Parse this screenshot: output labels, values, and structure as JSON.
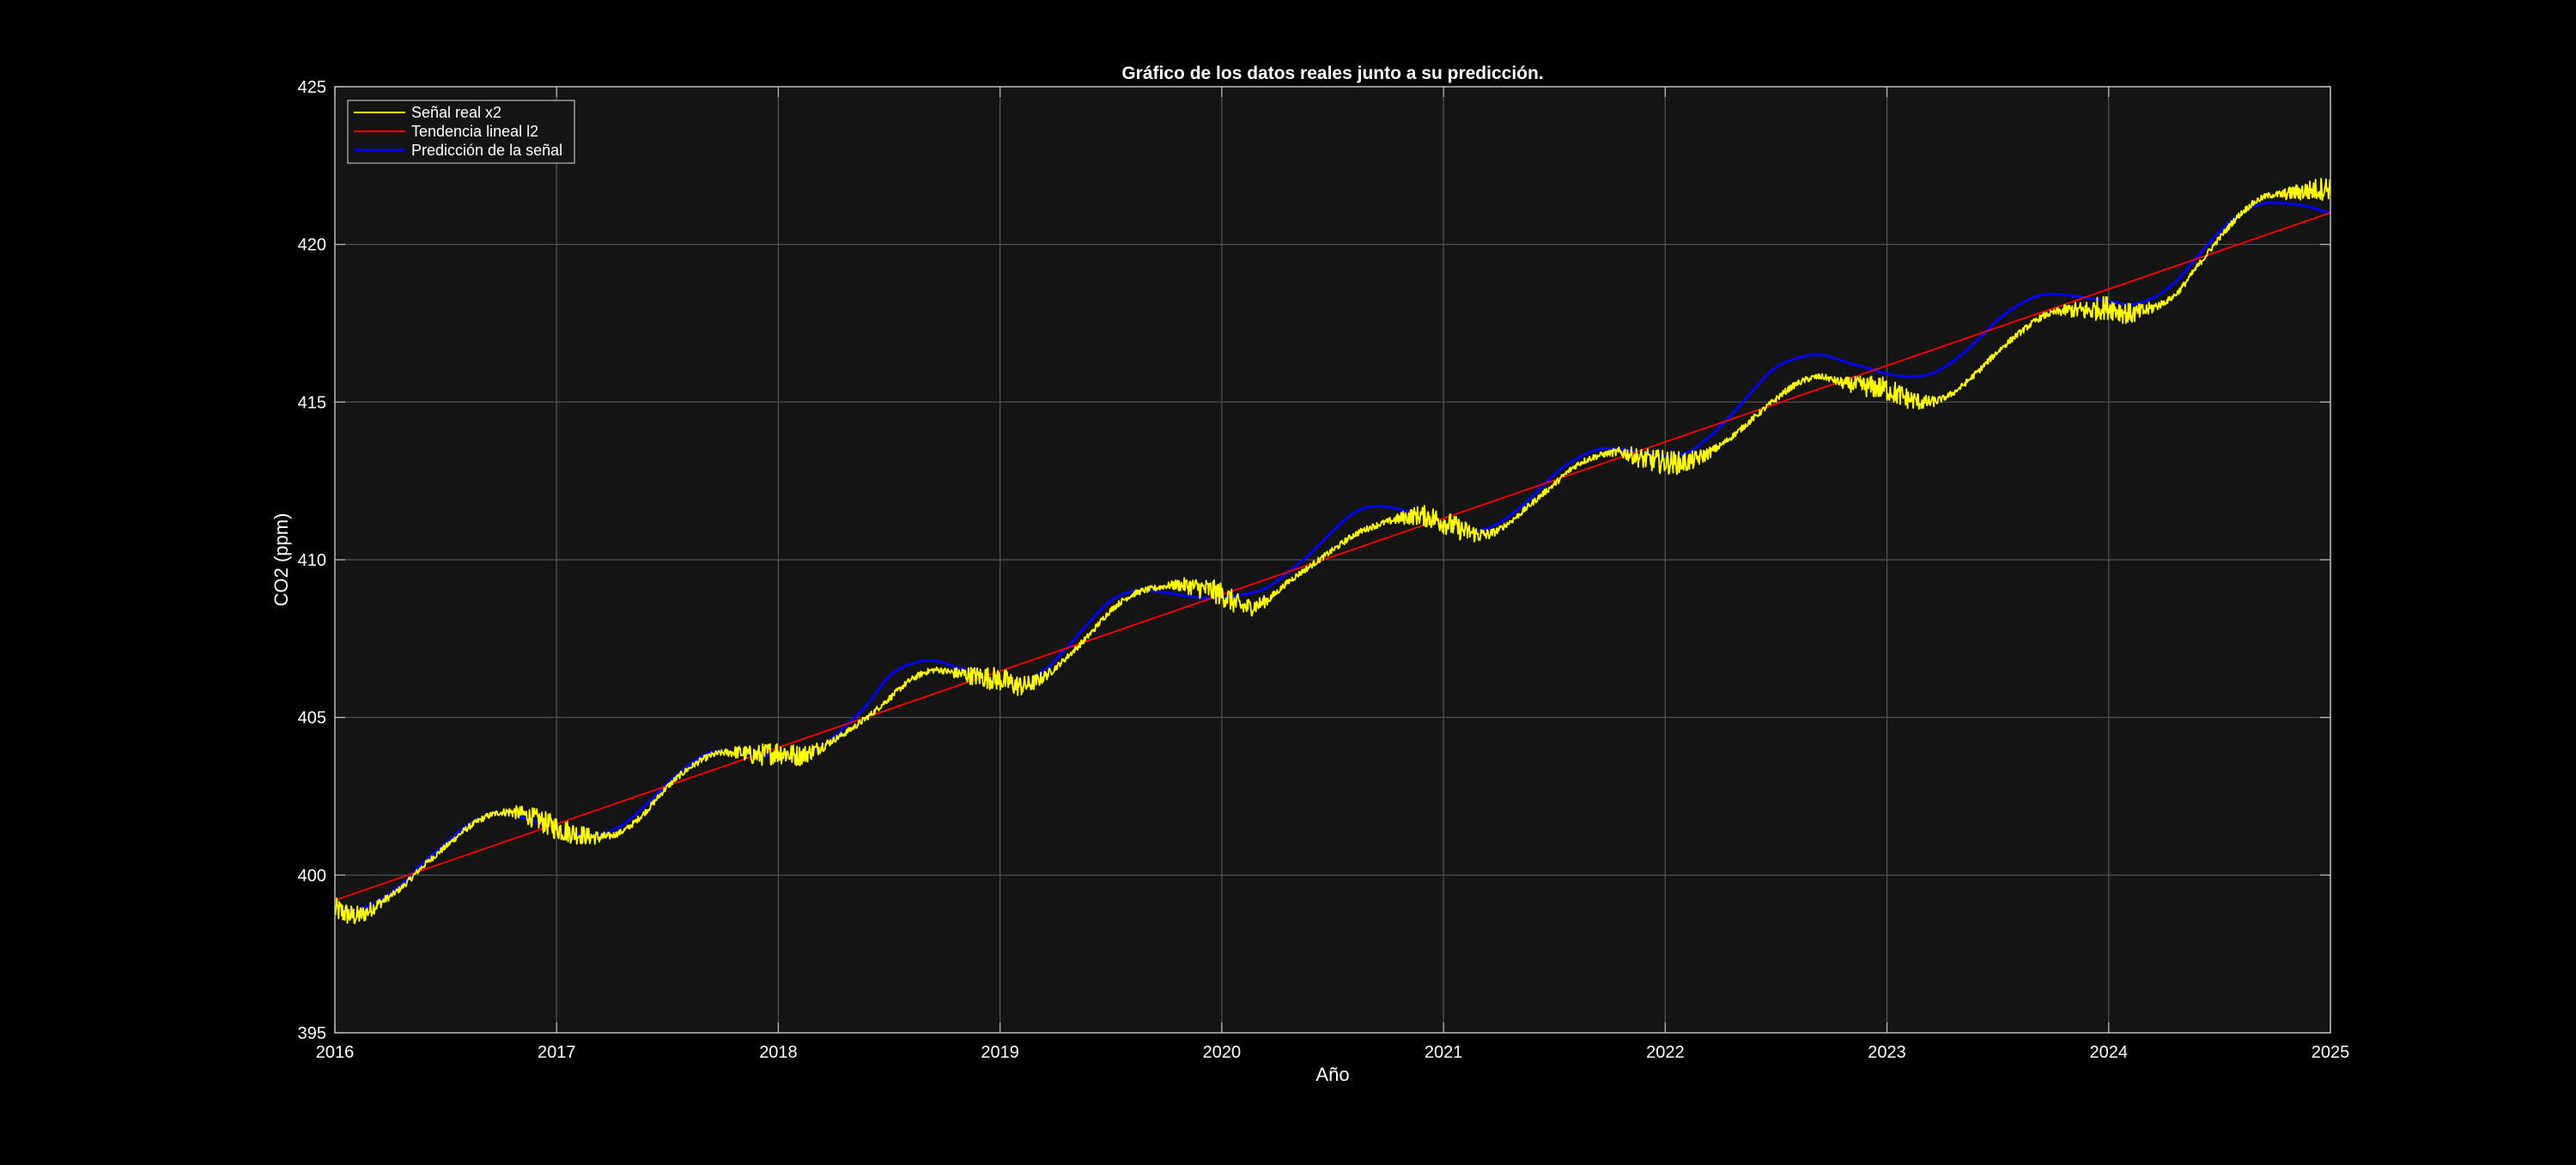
{
  "chart_data": {
    "type": "line",
    "title": "Gráfico de los datos reales junto a su predicción.",
    "xlabel": "Año",
    "ylabel": "CO2 (ppm)",
    "xlim": [
      2016,
      2025
    ],
    "ylim": [
      395,
      425
    ],
    "xticks": [
      "2016",
      "2017",
      "2018",
      "2019",
      "2020",
      "2021",
      "2022",
      "2023",
      "2024",
      "2025"
    ],
    "yticks": [
      "395",
      "400",
      "405",
      "410",
      "415",
      "420",
      "425"
    ],
    "grid": true,
    "legend_position": "top-left",
    "colors": {
      "figure_background": "#000000",
      "axes_background": "#141414",
      "grid": "#555555",
      "text": "#ffffff"
    },
    "series": [
      {
        "name": "Señal real x2",
        "color": "#ffff00",
        "noise": true,
        "x": [
          2016.0,
          2016.1,
          2016.2,
          2016.3,
          2016.4,
          2016.5,
          2016.6,
          2016.7,
          2016.8,
          2016.9,
          2017.0,
          2017.1,
          2017.2,
          2017.3,
          2017.4,
          2017.5,
          2017.6,
          2017.7,
          2017.8,
          2017.9,
          2018.0,
          2018.1,
          2018.2,
          2018.3,
          2018.4,
          2018.5,
          2018.6,
          2018.7,
          2018.8,
          2018.9,
          2019.0,
          2019.1,
          2019.2,
          2019.3,
          2019.4,
          2019.5,
          2019.6,
          2019.7,
          2019.8,
          2019.9,
          2020.0,
          2020.1,
          2020.2,
          2020.3,
          2020.4,
          2020.5,
          2020.6,
          2020.7,
          2020.8,
          2020.9,
          2021.0,
          2021.1,
          2021.2,
          2021.3,
          2021.4,
          2021.5,
          2021.6,
          2021.7,
          2021.8,
          2021.9,
          2022.0,
          2022.1,
          2022.2,
          2022.3,
          2022.4,
          2022.5,
          2022.6,
          2022.7,
          2022.8,
          2022.9,
          2023.0,
          2023.1,
          2023.2,
          2023.3,
          2023.4,
          2023.5,
          2023.6,
          2023.7,
          2023.8,
          2023.9,
          2024.0,
          2024.1,
          2024.2,
          2024.3,
          2024.4,
          2024.5,
          2024.6,
          2024.7,
          2024.8,
          2024.9,
          2025.0
        ],
        "y": [
          398.9,
          398.7,
          399.1,
          399.6,
          400.3,
          400.9,
          401.5,
          401.9,
          402.0,
          401.8,
          401.5,
          401.3,
          401.2,
          401.4,
          402.0,
          402.8,
          403.4,
          403.8,
          403.9,
          403.8,
          403.9,
          403.8,
          404.1,
          404.5,
          405.0,
          405.6,
          406.2,
          406.5,
          406.4,
          406.3,
          406.2,
          406.0,
          406.3,
          406.9,
          407.6,
          408.4,
          408.9,
          409.1,
          409.2,
          409.1,
          408.9,
          408.5,
          408.7,
          409.3,
          409.8,
          410.3,
          410.8,
          411.1,
          411.3,
          411.4,
          411.2,
          410.9,
          410.8,
          411.2,
          411.8,
          412.4,
          413.0,
          413.3,
          413.4,
          413.2,
          413.1,
          413.1,
          413.4,
          413.9,
          414.5,
          415.1,
          415.6,
          415.8,
          415.6,
          415.5,
          415.4,
          415.1,
          415.0,
          415.3,
          415.9,
          416.6,
          417.2,
          417.7,
          417.9,
          417.9,
          418.0,
          417.8,
          418.0,
          418.4,
          419.3,
          420.2,
          421.0,
          421.5,
          421.6,
          421.7,
          421.8
        ]
      },
      {
        "name": "Tendencia lineal l2",
        "color": "#ff0000",
        "x": [
          2016,
          2025
        ],
        "y": [
          399.2,
          421.0
        ]
      },
      {
        "name": "Predicción de la señal",
        "color": "#0000ff",
        "x": [
          2016.0,
          2016.1,
          2016.2,
          2016.3,
          2016.4,
          2016.5,
          2016.6,
          2016.7,
          2016.8,
          2016.9,
          2017.0,
          2017.1,
          2017.2,
          2017.3,
          2017.4,
          2017.5,
          2017.6,
          2017.7,
          2017.8,
          2017.9,
          2018.0,
          2018.1,
          2018.2,
          2018.3,
          2018.4,
          2018.5,
          2018.6,
          2018.7,
          2018.8,
          2018.9,
          2019.0,
          2019.1,
          2019.2,
          2019.3,
          2019.4,
          2019.5,
          2019.6,
          2019.7,
          2019.8,
          2019.9,
          2020.0,
          2020.1,
          2020.2,
          2020.3,
          2020.4,
          2020.5,
          2020.6,
          2020.7,
          2020.8,
          2020.9,
          2021.0,
          2021.1,
          2021.2,
          2021.3,
          2021.4,
          2021.5,
          2021.6,
          2021.7,
          2021.8,
          2021.9,
          2022.0,
          2022.1,
          2022.2,
          2022.3,
          2022.4,
          2022.5,
          2022.6,
          2022.7,
          2022.8,
          2022.9,
          2023.0,
          2023.1,
          2023.2,
          2023.3,
          2023.4,
          2023.5,
          2023.6,
          2023.7,
          2023.8,
          2023.9,
          2024.0,
          2024.1,
          2024.2,
          2024.3,
          2024.4,
          2024.5,
          2024.6,
          2024.7,
          2024.8,
          2024.9,
          2025.0
        ],
        "y": [
          399.0,
          398.9,
          399.2,
          399.7,
          400.4,
          401.0,
          401.6,
          401.9,
          401.9,
          401.7,
          401.5,
          401.3,
          401.3,
          401.6,
          402.2,
          402.9,
          403.5,
          403.9,
          403.9,
          403.8,
          403.8,
          403.7,
          404.1,
          404.7,
          405.4,
          406.3,
          406.7,
          406.8,
          406.6,
          406.4,
          406.1,
          406.1,
          406.5,
          407.2,
          408.0,
          408.7,
          409.0,
          409.0,
          408.9,
          408.8,
          408.8,
          408.9,
          409.1,
          409.6,
          410.2,
          410.9,
          411.5,
          411.7,
          411.6,
          411.4,
          411.1,
          410.9,
          411.0,
          411.4,
          412.0,
          412.7,
          413.2,
          413.5,
          413.5,
          413.4,
          413.3,
          413.4,
          413.9,
          414.6,
          415.4,
          416.1,
          416.4,
          416.5,
          416.3,
          416.1,
          415.9,
          415.8,
          415.9,
          416.3,
          416.9,
          417.6,
          418.1,
          418.4,
          418.4,
          418.3,
          418.2,
          418.1,
          418.3,
          418.8,
          419.6,
          420.4,
          421.0,
          421.3,
          421.3,
          421.2,
          421.0
        ]
      }
    ]
  }
}
